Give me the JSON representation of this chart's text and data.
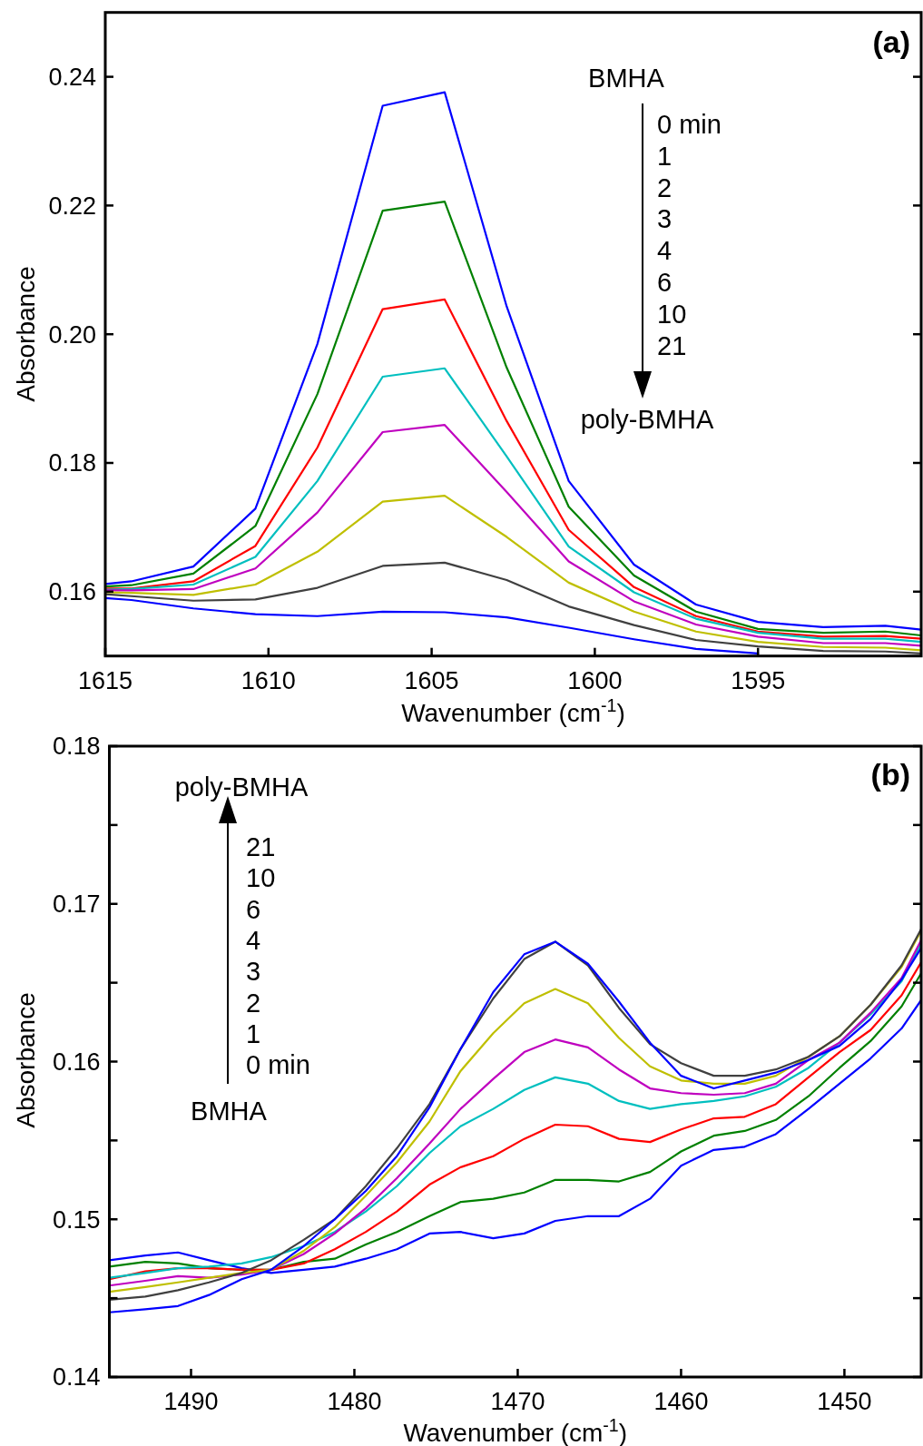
{
  "chart_data": [
    {
      "type": "line",
      "title": "(a)",
      "xlabel": "Wavenumber (cm$^{-1}$)",
      "ylabel": "Absorbance",
      "annotations": [
        "BMHA",
        "0 min",
        "1",
        "2",
        "3",
        "4",
        "6",
        "10",
        "21",
        "poly-BMHA"
      ],
      "x": [
        1615,
        1614.2,
        1612.3,
        1610.4,
        1608.5,
        1606.5,
        1604.6,
        1602.7,
        1600.8,
        1598.8,
        1596.9,
        1595,
        1593,
        1591.1,
        1590
      ],
      "xlim": [
        1615,
        1590
      ],
      "ylim": [
        0.15,
        0.25
      ],
      "xticks": [
        1615,
        1610,
        1605,
        1600,
        1595
      ],
      "yticks": [
        0.16,
        0.18,
        {
          "value": 0.2,
          "label": "0.20"
        },
        0.22,
        0.24
      ],
      "series": [
        {
          "color": "#0000ff",
          "values": [
            0.1612,
            0.1616,
            0.1639,
            0.1729,
            0.1985,
            0.2355,
            0.2376,
            0.2043,
            0.1772,
            0.1642,
            0.158,
            0.1553,
            0.1545,
            0.1547,
            0.1541
          ]
        },
        {
          "color": "#008000",
          "values": [
            0.1608,
            0.161,
            0.1628,
            0.1702,
            0.1907,
            0.2192,
            0.2206,
            0.1948,
            0.1732,
            0.1625,
            0.1569,
            0.1542,
            0.1536,
            0.1538,
            0.1532
          ]
        },
        {
          "color": "#ff0000",
          "values": [
            0.1605,
            0.1605,
            0.1616,
            0.1671,
            0.1824,
            0.2039,
            0.2054,
            0.1865,
            0.1696,
            0.1607,
            0.1562,
            0.1538,
            0.153,
            0.1531,
            0.1527
          ]
        },
        {
          "color": "#00bfbf",
          "values": [
            0.1603,
            0.1604,
            0.1611,
            0.1654,
            0.1772,
            0.1934,
            0.1947,
            0.181,
            0.167,
            0.1599,
            0.1558,
            0.1536,
            0.1527,
            0.1527,
            0.1522
          ]
        },
        {
          "color": "#bf00bf",
          "values": [
            0.1602,
            0.1602,
            0.1604,
            0.1636,
            0.1723,
            0.1848,
            0.1859,
            0.1755,
            0.1647,
            0.1585,
            0.1549,
            0.153,
            0.152,
            0.152,
            0.1516
          ]
        },
        {
          "color": "#bfbf00",
          "values": [
            0.1599,
            0.1598,
            0.1595,
            0.1611,
            0.1662,
            0.174,
            0.1749,
            0.1685,
            0.1614,
            0.1569,
            0.1538,
            0.1522,
            0.1514,
            0.1513,
            0.1509
          ]
        },
        {
          "color": "#404040",
          "values": [
            0.1596,
            0.1593,
            0.1586,
            0.1588,
            0.1606,
            0.164,
            0.1645,
            0.1618,
            0.1577,
            0.1548,
            0.1525,
            0.1515,
            0.1508,
            0.1507,
            0.1504
          ]
        },
        {
          "color": "#0000ff",
          "values": [
            0.159,
            0.1587,
            0.1574,
            0.1565,
            0.1562,
            0.1569,
            0.1568,
            0.156,
            0.1544,
            0.1526,
            0.1511,
            0.1504,
            null,
            null,
            null
          ]
        }
      ]
    },
    {
      "type": "line",
      "title": "(b)",
      "xlabel": "Wavenumber (cm$^{-1}$)",
      "ylabel": "Absorbance",
      "annotations": [
        "poly-BMHA",
        "21",
        "10",
        "6",
        "4",
        "3",
        "2",
        "1",
        "0 min",
        "BMHA"
      ],
      "x": [
        1495,
        1492.8,
        1490.8,
        1488.9,
        1486.9,
        1485.1,
        1483.1,
        1481.2,
        1479.3,
        1477.4,
        1475.4,
        1473.5,
        1471.5,
        1469.6,
        1467.7,
        1465.7,
        1463.8,
        1461.9,
        1460,
        1458,
        1456.1,
        1454.2,
        1452.2,
        1450.3,
        1448.4,
        1446.5,
        1445.3
      ],
      "xlim": [
        1495,
        1445.3
      ],
      "ylim": [
        0.14,
        0.18
      ],
      "xticks": [
        1490,
        1480,
        1470,
        1460,
        1450
      ],
      "yticks": [
        0.14,
        {
          "value": 0.145,
          "label": null
        },
        0.15,
        {
          "value": 0.155,
          "label": null
        },
        0.16,
        {
          "value": 0.165,
          "label": null
        },
        0.17,
        {
          "value": 0.175,
          "label": null
        },
        0.18
      ],
      "series": [
        {
          "color": "#0000ff",
          "values": [
            0.1474,
            0.1477,
            0.1479,
            0.1474,
            0.1469,
            0.1466,
            0.1468,
            0.147,
            0.1475,
            0.1481,
            0.1491,
            0.1492,
            0.1488,
            0.1491,
            0.1499,
            0.1502,
            0.1502,
            0.1513,
            0.1534,
            0.1544,
            0.1546,
            0.1554,
            0.157,
            0.1586,
            0.1602,
            0.1621,
            0.1639
          ]
        },
        {
          "color": "#008000",
          "values": [
            0.147,
            0.1473,
            0.1472,
            0.1469,
            0.1468,
            0.1468,
            0.1473,
            0.1475,
            0.1484,
            0.1492,
            0.1502,
            0.1511,
            0.1513,
            0.1517,
            0.1525,
            0.1525,
            0.1524,
            0.153,
            0.1543,
            0.1553,
            0.1556,
            0.1563,
            0.1578,
            0.1596,
            0.1613,
            0.1635,
            0.1656
          ]
        },
        {
          "color": "#ff0000",
          "values": [
            0.1462,
            0.1467,
            0.1469,
            0.1469,
            0.1468,
            0.1468,
            0.1472,
            0.1481,
            0.1492,
            0.1505,
            0.1522,
            0.1533,
            0.154,
            0.1551,
            0.156,
            0.1559,
            0.1551,
            0.1549,
            0.1557,
            0.1564,
            0.1565,
            0.1573,
            0.159,
            0.1606,
            0.162,
            0.1642,
            0.1663
          ]
        },
        {
          "color": "#00bfbf",
          "values": [
            0.1463,
            0.1466,
            0.1469,
            0.147,
            0.1472,
            0.1476,
            0.1483,
            0.1492,
            0.1505,
            0.1521,
            0.1542,
            0.1559,
            0.157,
            0.1582,
            0.159,
            0.1586,
            0.1575,
            0.157,
            0.1573,
            0.1575,
            0.1578,
            0.1584,
            0.1596,
            0.1612,
            0.163,
            0.1651,
            0.1675
          ]
        },
        {
          "color": "#bf00bf",
          "values": [
            0.1458,
            0.1461,
            0.1464,
            0.1463,
            0.1465,
            0.1468,
            0.1478,
            0.1491,
            0.1507,
            0.1526,
            0.1548,
            0.157,
            0.1589,
            0.1606,
            0.1614,
            0.1609,
            0.1595,
            0.1583,
            0.158,
            0.1579,
            0.158,
            0.1586,
            0.1601,
            0.1612,
            0.1631,
            0.1653,
            0.1677
          ]
        },
        {
          "color": "#bfbf00",
          "values": [
            0.1454,
            0.1457,
            0.146,
            0.1463,
            0.1466,
            0.1468,
            0.148,
            0.1495,
            0.1515,
            0.1536,
            0.1562,
            0.1594,
            0.1618,
            0.1637,
            0.1646,
            0.1637,
            0.1615,
            0.1597,
            0.1588,
            0.1586,
            0.1586,
            0.1591,
            0.1603,
            0.1616,
            0.1636,
            0.166,
            0.1683
          ]
        },
        {
          "color": "#404040",
          "values": [
            0.1449,
            0.1451,
            0.1455,
            0.146,
            0.1466,
            0.1474,
            0.1487,
            0.15,
            0.1521,
            0.1545,
            0.1573,
            0.1608,
            0.164,
            0.1665,
            0.1676,
            0.1661,
            0.1634,
            0.1611,
            0.1599,
            0.1591,
            0.1591,
            0.1595,
            0.1603,
            0.1616,
            0.1636,
            0.1661,
            0.1684
          ]
        },
        {
          "color": "#0000ff",
          "values": [
            0.1441,
            0.1443,
            0.1445,
            0.1452,
            0.1462,
            0.1468,
            0.1483,
            0.15,
            0.1518,
            0.154,
            0.1571,
            0.1608,
            0.1644,
            0.1668,
            0.1676,
            0.1662,
            0.1638,
            0.1612,
            0.1591,
            0.1583,
            0.1588,
            0.1593,
            0.1601,
            0.161,
            0.1627,
            0.1652,
            0.1672
          ]
        }
      ]
    }
  ]
}
